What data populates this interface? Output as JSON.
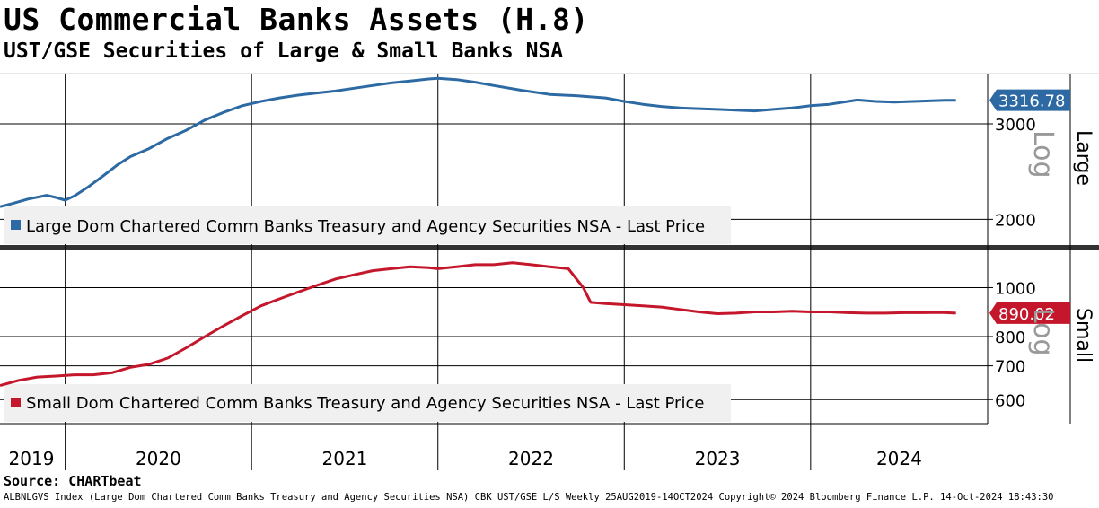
{
  "title": "US Commercial Banks Assets (H.8)",
  "subtitle": "UST/GSE Securities of Large & Small Banks NSA",
  "source": "Source: CHARTbeat",
  "footer": "ALBNLGVS Index (Large Dom Chartered Comm Banks Treasury and Agency Securities NSA) CBK UST/GSE L/S  Weekly 25AUG2019-14OCT2024  Copyright© 2024 Bloomberg Finance L.P.  14-Oct-2024 18:43:30",
  "colors": {
    "large": "#2d6aa3",
    "small": "#c4172c",
    "grid": "#000000",
    "legend_bg": "#f0f0f0"
  },
  "chart_data": [
    {
      "type": "line",
      "panel": "top",
      "legend": "Large Dom Chartered Comm Banks Treasury and Agency Securities NSA - Last Price",
      "side_label": "Large",
      "scale_label": "Log",
      "log_scale": true,
      "ylim": [
        1800,
        3700
      ],
      "yticks": [
        2000,
        3000
      ],
      "ytick_labels": [
        "2000",
        "3000"
      ],
      "last_value": 3316.78,
      "last_value_label": "3316.78",
      "x_categories": [
        "2019",
        "2020",
        "2021",
        "2022",
        "2023",
        "2024"
      ],
      "x_boundaries": [
        2020.0,
        2021.0,
        2022.0,
        2023.0,
        2024.0
      ],
      "xlim": [
        2019.65,
        2024.95
      ],
      "series": [
        {
          "x": [
            2019.65,
            2019.72,
            2019.8,
            2019.9,
            2019.95,
            2020.0,
            2020.05,
            2020.12,
            2020.2,
            2020.28,
            2020.35,
            2020.45,
            2020.55,
            2020.65,
            2020.75,
            2020.85,
            2020.95,
            2021.05,
            2021.15,
            2021.25,
            2021.35,
            2021.45,
            2021.55,
            2021.65,
            2021.75,
            2021.85,
            2021.95,
            2022.0,
            2022.1,
            2022.2,
            2022.3,
            2022.45,
            2022.6,
            2022.75,
            2022.9,
            2023.0,
            2023.1,
            2023.2,
            2023.3,
            2023.4,
            2023.5,
            2023.6,
            2023.7,
            2023.8,
            2023.9,
            2024.0,
            2024.1,
            2024.2,
            2024.25,
            2024.35,
            2024.45,
            2024.55,
            2024.65,
            2024.72,
            2024.78
          ],
          "y": [
            2110,
            2140,
            2180,
            2215,
            2195,
            2170,
            2210,
            2290,
            2400,
            2520,
            2610,
            2700,
            2820,
            2920,
            3050,
            3150,
            3240,
            3300,
            3350,
            3390,
            3420,
            3450,
            3490,
            3530,
            3570,
            3600,
            3630,
            3640,
            3620,
            3580,
            3530,
            3460,
            3400,
            3380,
            3350,
            3300,
            3260,
            3230,
            3210,
            3200,
            3190,
            3180,
            3170,
            3190,
            3210,
            3240,
            3260,
            3300,
            3320,
            3300,
            3290,
            3300,
            3310,
            3315,
            3316.78
          ]
        }
      ]
    },
    {
      "type": "line",
      "panel": "bottom",
      "legend": "Small Dom Chartered Comm Banks Treasury and Agency Securities NSA - Last Price",
      "side_label": "Small",
      "scale_label": "Log",
      "log_scale": true,
      "ylim": [
        540,
        1180
      ],
      "yticks": [
        600,
        700,
        800,
        1000
      ],
      "ytick_labels": [
        "600",
        "700",
        "800",
        "1000"
      ],
      "last_value": 890.02,
      "last_value_label": "890.02",
      "x_categories": [
        "2019",
        "2020",
        "2021",
        "2022",
        "2023",
        "2024"
      ],
      "x_boundaries": [
        2020.0,
        2021.0,
        2022.0,
        2023.0,
        2024.0
      ],
      "xlim": [
        2019.65,
        2024.95
      ],
      "series": [
        {
          "x": [
            2019.65,
            2019.75,
            2019.85,
            2019.95,
            2020.05,
            2020.15,
            2020.25,
            2020.35,
            2020.45,
            2020.55,
            2020.65,
            2020.75,
            2020.85,
            2020.95,
            2021.05,
            2021.15,
            2021.25,
            2021.35,
            2021.45,
            2021.55,
            2021.65,
            2021.75,
            2021.85,
            2021.95,
            2022.0,
            2022.1,
            2022.2,
            2022.3,
            2022.4,
            2022.5,
            2022.6,
            2022.7,
            2022.78,
            2022.82,
            2022.9,
            2023.0,
            2023.1,
            2023.2,
            2023.3,
            2023.4,
            2023.5,
            2023.6,
            2023.7,
            2023.8,
            2023.9,
            2024.0,
            2024.1,
            2024.2,
            2024.3,
            2024.4,
            2024.5,
            2024.6,
            2024.7,
            2024.78
          ],
          "y": [
            640,
            655,
            665,
            668,
            672,
            672,
            678,
            695,
            705,
            725,
            760,
            800,
            840,
            880,
            920,
            950,
            980,
            1010,
            1040,
            1060,
            1080,
            1090,
            1100,
            1095,
            1090,
            1100,
            1110,
            1110,
            1120,
            1110,
            1100,
            1090,
            1000,
            935,
            930,
            925,
            920,
            915,
            905,
            895,
            888,
            890,
            895,
            895,
            898,
            895,
            895,
            892,
            890,
            890,
            892,
            892,
            893,
            890.02
          ]
        }
      ]
    }
  ]
}
